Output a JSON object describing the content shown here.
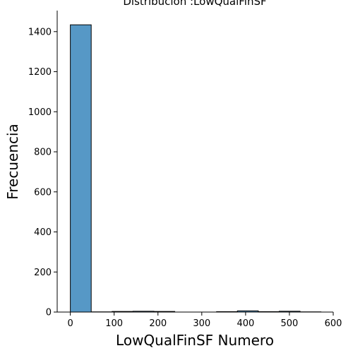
{
  "chart_data": {
    "type": "bar",
    "title": "Distribucion :LowQualFinSF",
    "xlabel": "LowQualFinSF Numero",
    "ylabel": "Frecuencia",
    "xlim": [
      -30,
      600
    ],
    "ylim": [
      0,
      1505
    ],
    "xticks": [
      0,
      100,
      200,
      300,
      400,
      500,
      600
    ],
    "yticks": [
      0,
      200,
      400,
      600,
      800,
      1000,
      1200,
      1400
    ],
    "bin_edges": [
      0,
      47.67,
      95.33,
      143,
      190.67,
      238.33,
      286,
      333.67,
      381.33,
      429,
      476.67,
      524.33,
      572
    ],
    "values": [
      1434,
      1,
      3,
      4,
      3,
      0,
      0,
      2,
      6,
      2,
      4,
      1
    ],
    "grid": false,
    "legend": "none",
    "bar_color": "#5698c6"
  }
}
